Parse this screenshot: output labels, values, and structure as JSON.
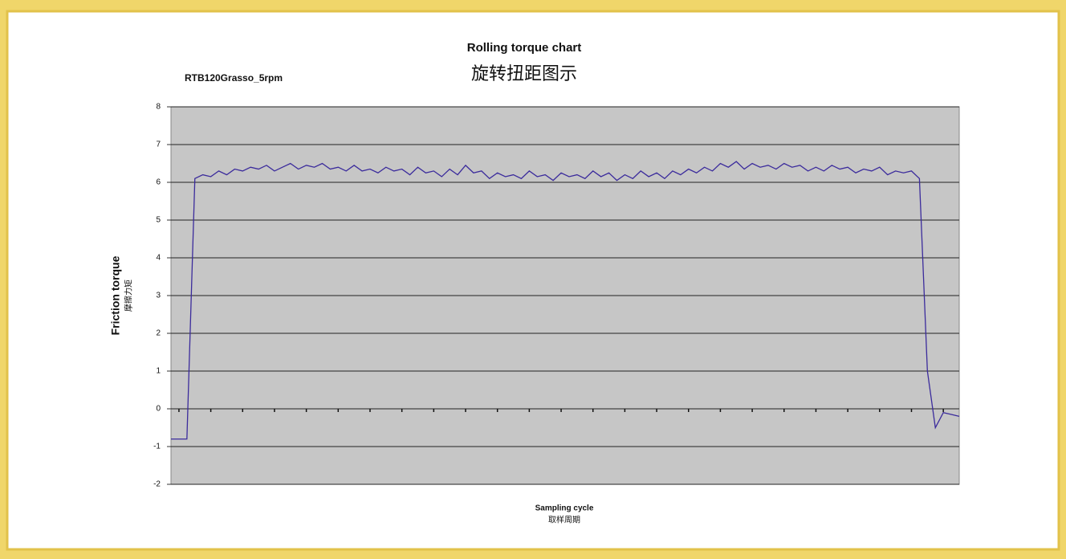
{
  "chart_data": {
    "type": "line",
    "title": "Rolling torque chart",
    "title_zh": "旋转扭距图示",
    "subtitle": "RTB120Grasso_5rpm",
    "y_label": "Friction torque",
    "y_label_zh": "摩擦力矩",
    "x_label": "Sampling cycle",
    "x_label_zh": "取样周期",
    "categories": [
      null,
      null,
      null,
      null,
      null,
      null,
      null,
      null,
      null,
      null,
      null,
      null,
      null,
      null,
      null,
      null,
      null,
      null,
      null,
      null,
      null,
      null,
      null,
      null,
      null,
      null,
      null,
      null,
      null,
      null,
      null,
      null,
      null,
      null,
      null,
      null,
      null,
      null,
      null,
      null,
      null,
      null,
      null,
      null,
      null,
      null,
      null,
      null,
      null,
      null,
      null,
      null,
      null,
      null,
      null,
      null,
      null,
      null,
      null,
      null,
      null,
      null,
      null,
      null,
      null,
      null,
      null,
      null,
      null,
      null,
      null,
      null,
      null,
      null,
      null,
      null,
      null,
      null,
      null,
      null,
      null,
      null,
      null,
      null,
      null,
      null,
      null,
      null,
      null,
      null,
      null,
      null,
      null,
      null,
      null,
      null,
      null,
      null,
      null,
      null
    ],
    "series": [
      {
        "color": "#3b2b9c",
        "values": [
          -0.8,
          -0.8,
          -0.8,
          6.1,
          6.2,
          6.15,
          6.3,
          6.2,
          6.35,
          6.3,
          6.4,
          6.35,
          6.45,
          6.3,
          6.4,
          6.5,
          6.35,
          6.45,
          6.4,
          6.5,
          6.35,
          6.4,
          6.3,
          6.45,
          6.3,
          6.35,
          6.25,
          6.4,
          6.3,
          6.35,
          6.2,
          6.4,
          6.25,
          6.3,
          6.15,
          6.35,
          6.2,
          6.45,
          6.25,
          6.3,
          6.1,
          6.25,
          6.15,
          6.2,
          6.1,
          6.3,
          6.15,
          6.2,
          6.05,
          6.25,
          6.15,
          6.2,
          6.1,
          6.3,
          6.15,
          6.25,
          6.05,
          6.2,
          6.1,
          6.3,
          6.15,
          6.25,
          6.1,
          6.3,
          6.2,
          6.35,
          6.25,
          6.4,
          6.3,
          6.5,
          6.4,
          6.55,
          6.35,
          6.5,
          6.4,
          6.45,
          6.35,
          6.5,
          6.4,
          6.45,
          6.3,
          6.4,
          6.3,
          6.45,
          6.35,
          6.4,
          6.25,
          6.35,
          6.3,
          6.4,
          6.2,
          6.3,
          6.25,
          6.3,
          6.1,
          1.0,
          -0.5,
          -0.1,
          -0.15,
          -0.2
        ]
      }
    ],
    "ylim": [
      -2,
      8
    ],
    "yticks": [
      -2,
      -1,
      0,
      1,
      2,
      3,
      4,
      5,
      6,
      7,
      8
    ],
    "grid": true,
    "plot_background": "#c6c6c6"
  }
}
